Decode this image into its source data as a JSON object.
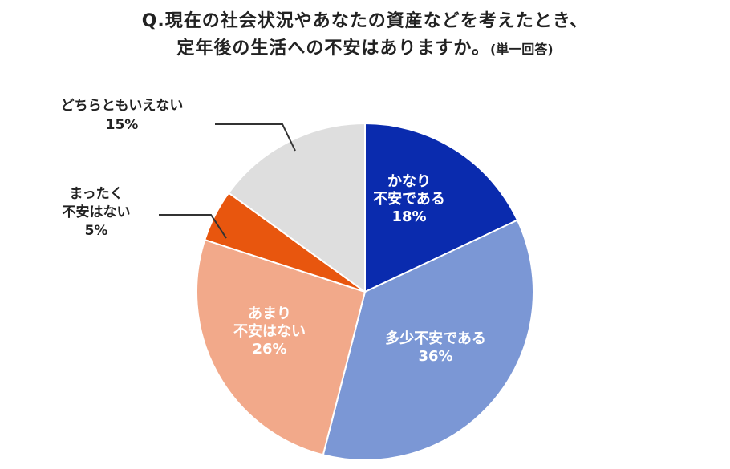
{
  "title_line1": "Q.現在の社会状況やあなたの資産などを考えたとき、",
  "title_line2": "定年後の生活への不安はありますか。",
  "title_note": "(単一回答)",
  "chart_data": {
    "type": "pie",
    "unit": "%",
    "start_angle_deg": 0,
    "direction": "clockwise",
    "slices": [
      {
        "label_lines": [
          "かなり",
          "不安である"
        ],
        "value": 18,
        "value_text": "18%",
        "color": "#0A2BAE",
        "label_position": "inside"
      },
      {
        "label_lines": [
          "多少不安である"
        ],
        "value": 36,
        "value_text": "36%",
        "color": "#7B97D5",
        "label_position": "inside"
      },
      {
        "label_lines": [
          "あまり",
          "不安はない"
        ],
        "value": 26,
        "value_text": "26%",
        "color": "#F2A98A",
        "label_position": "inside"
      },
      {
        "label_lines": [
          "まったく",
          "不安はない"
        ],
        "value": 5,
        "value_text": "5%",
        "color": "#E8560E",
        "label_position": "outside"
      },
      {
        "label_lines": [
          "どちらともいえない"
        ],
        "value": 15,
        "value_text": "15%",
        "color": "#DEDEDE",
        "label_position": "outside"
      }
    ]
  }
}
